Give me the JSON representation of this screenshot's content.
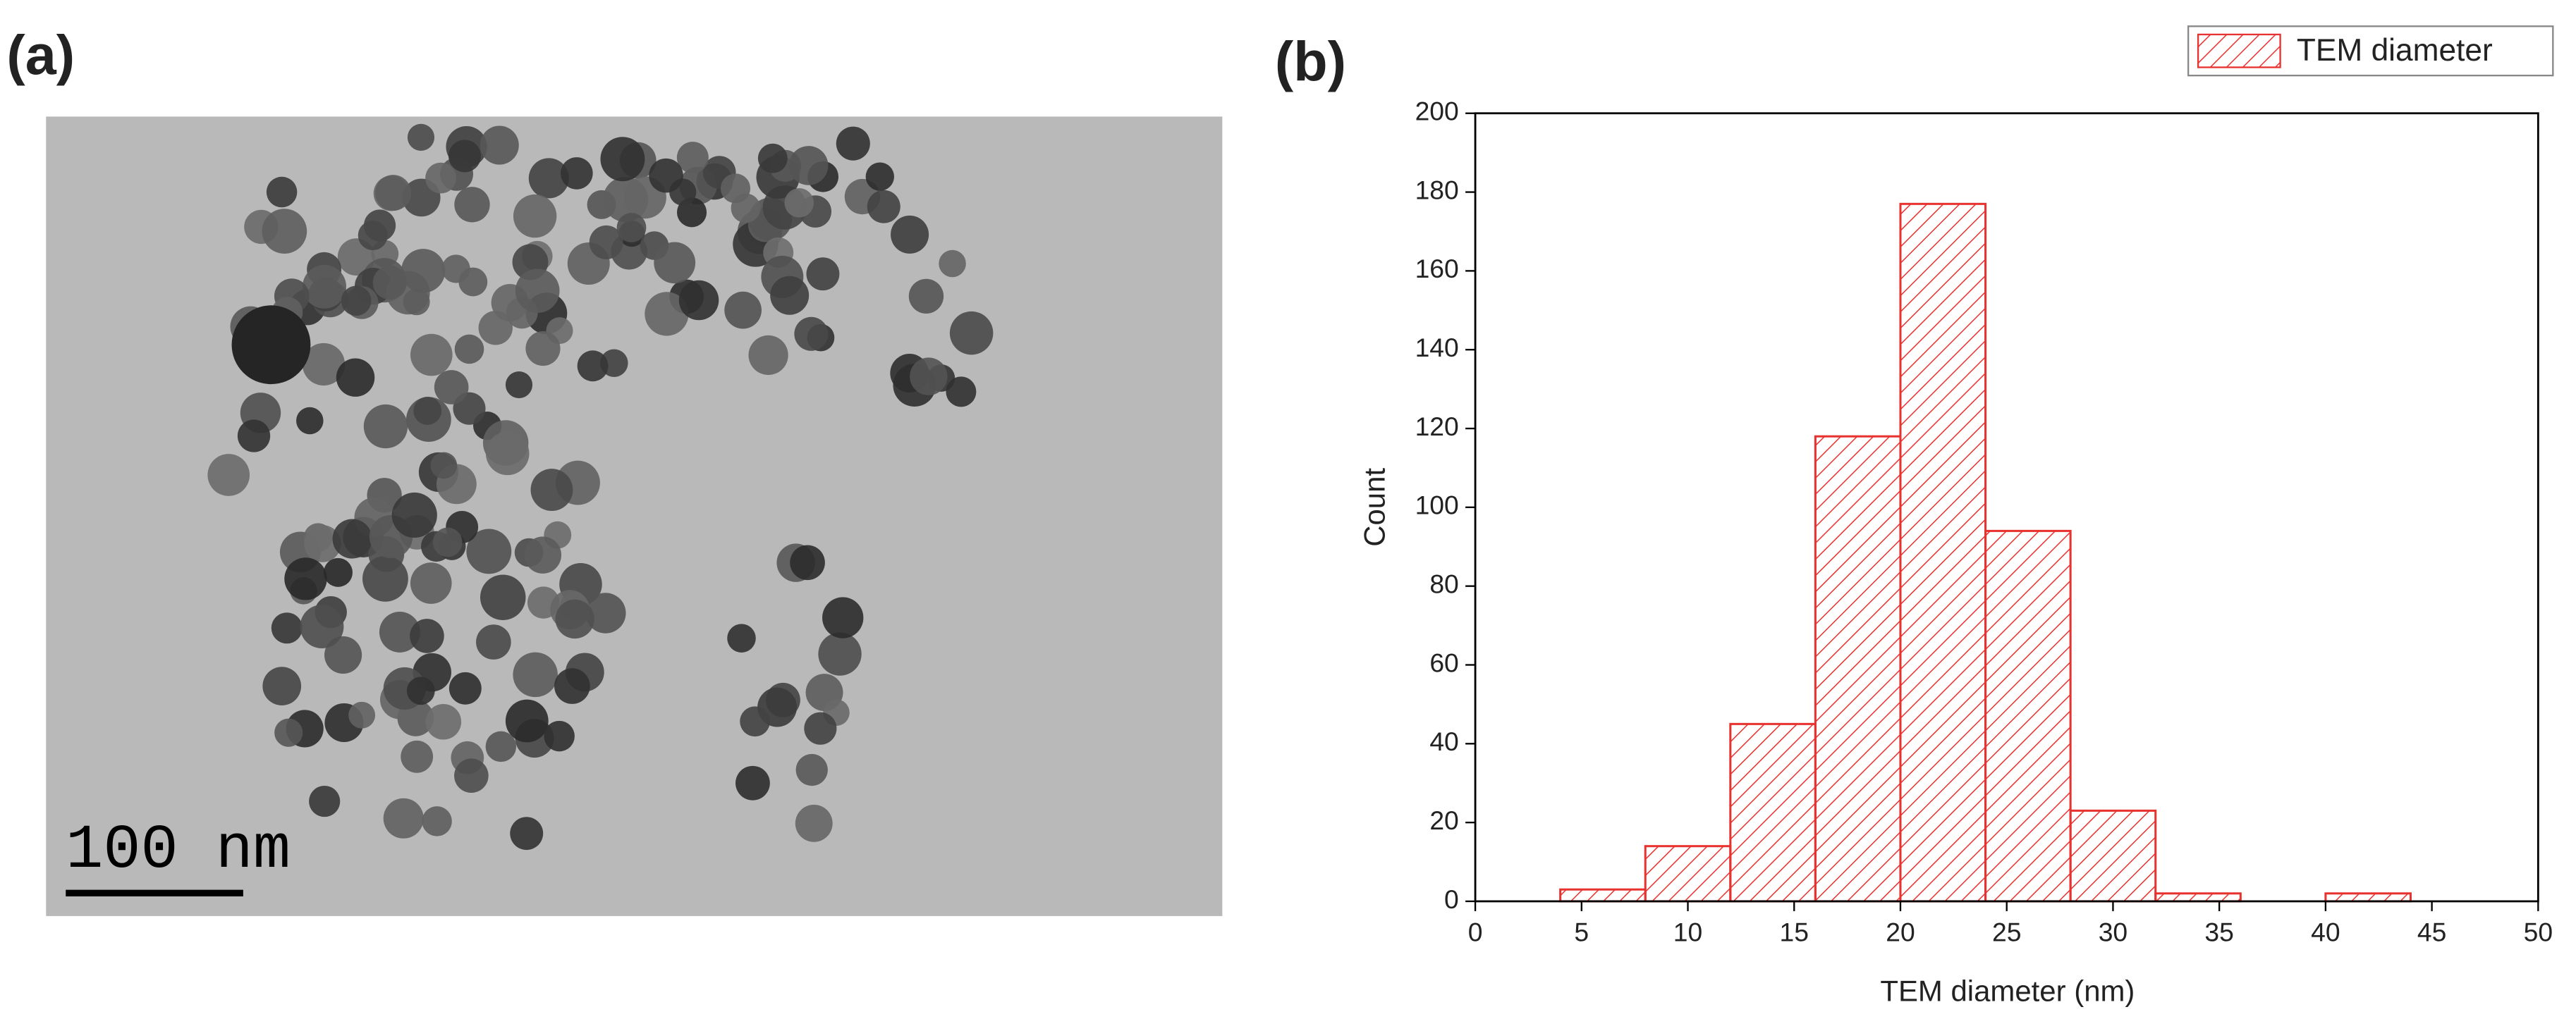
{
  "panel_labels": [
    "(a)",
    "(b)"
  ],
  "scale_bar": "100 nm",
  "chart_data": {
    "type": "histogram",
    "xlabel": "TEM diameter (nm)",
    "ylabel": "Count",
    "bins": [
      4,
      8,
      12,
      16,
      20,
      24,
      28,
      32,
      36,
      40,
      44
    ],
    "series": [
      {
        "name": "TEM diameter",
        "color": "#e8322f",
        "values": [
          3,
          14,
          45,
          118,
          177,
          94,
          23,
          2,
          0,
          2
        ]
      }
    ],
    "xlim": [
      0,
      50
    ],
    "xticks": [
      0,
      5,
      10,
      15,
      20,
      25,
      30,
      35,
      40,
      45,
      50
    ],
    "ylim": [
      0,
      200
    ],
    "yticks": [
      0,
      20,
      40,
      60,
      80,
      100,
      120,
      140,
      160,
      180,
      200
    ],
    "legend": "top-right"
  }
}
